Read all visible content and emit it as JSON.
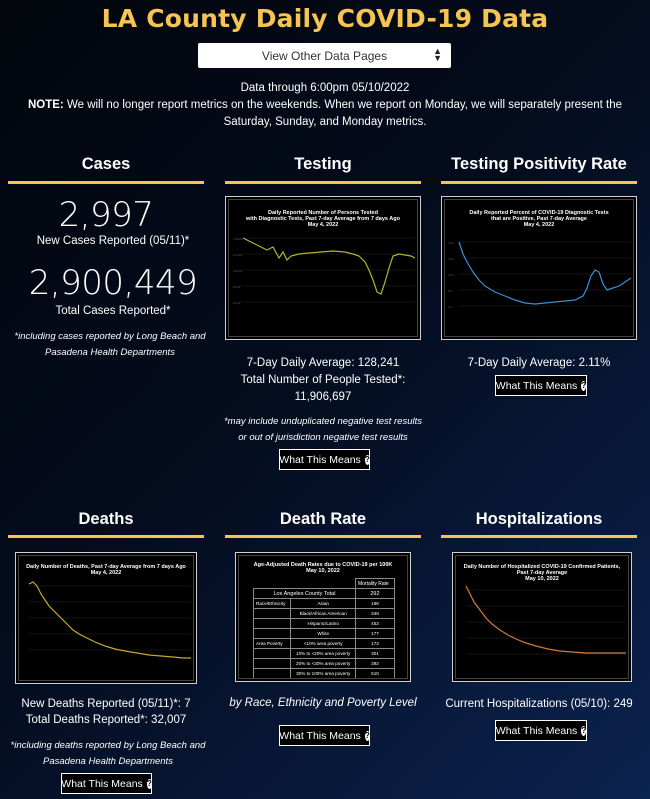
{
  "header": {
    "title": "LA County Daily COVID-19 Data",
    "select_label": "View Other Data Pages",
    "data_through": "Data through 6:00pm 05/10/2022",
    "note_label": "NOTE:",
    "note_text": " We will no longer report metrics on the weekends. When we report on Monday, we will separately present the Saturday, Sunday, and Monday metrics."
  },
  "cases": {
    "title": "Cases",
    "new_value": "2,997",
    "new_label": "New Cases Reported (05/11)*",
    "total_value": "2,900,449",
    "total_label": "Total Cases Reported*",
    "footnote": "*including cases reported by Long Beach and Pasadena Health Departments"
  },
  "testing": {
    "title": "Testing",
    "chart_title_1": "Daily Reported Number of Persons Tested",
    "chart_title_2": "with Diagnostic Tests, Past 7-day Average from 7 days Ago",
    "chart_title_3": "May 4, 2022",
    "avg": "7-Day Daily Average: 128,241",
    "total": "Total Number of People Tested*: 11,906,697",
    "footnote": "*may include unduplicated negative test results or out of jurisdiction negative test results",
    "button": "What This Means"
  },
  "positivity": {
    "title": "Testing Positivity Rate",
    "chart_title_1": "Daily Reported Percent of COVID-19 Diagnostic Tests",
    "chart_title_2": "that are Positive, Past 7-day Average",
    "chart_title_3": "May 4, 2022",
    "avg": "7-Day Daily Average: 2.11%",
    "button": "What This Means"
  },
  "deaths": {
    "title": "Deaths",
    "chart_title_1": "Daily Number of Deaths, Past 7-day Average from 7 days Ago",
    "chart_title_2": "May 4, 2022",
    "new": "New Deaths Reported (05/11)*: 7",
    "total": "Total Deaths Reported*: 32,007",
    "footnote": "*including deaths reported by Long Beach and Pasadena Health Departments",
    "button": "What This Means"
  },
  "death_rate": {
    "title": "Death Rate",
    "table_title_1": "Age-Adjusted Death Rates due to COVID-19 per 100K",
    "table_title_2": "May 10, 2022",
    "col_header": "Mortality Rate",
    "total_label": "Los Angeles County Total",
    "total_value": "292",
    "rows": [
      {
        "group": "Race/Ethnicity",
        "label": "Asian",
        "value": "198"
      },
      {
        "group": "",
        "label": "Black/African American",
        "value": "349"
      },
      {
        "group": "",
        "label": "Hispanic/Latino",
        "value": "453"
      },
      {
        "group": "",
        "label": "White",
        "value": "177"
      },
      {
        "group": "Area Poverty",
        "label": "<10% area poverty",
        "value": "173"
      },
      {
        "group": "",
        "label": "10% to <20% area poverty",
        "value": "301"
      },
      {
        "group": "",
        "label": "20% to <30% area poverty",
        "value": "392"
      },
      {
        "group": "",
        "label": "30% to 100% area poverty",
        "value": "510"
      }
    ],
    "caption": "by Race, Ethnicity and Poverty Level",
    "button": "What This Means"
  },
  "hospitalizations": {
    "title": "Hospitalizations",
    "chart_title_1": "Daily Number of Hospitalized COVID-19 Confirmed Patients,",
    "chart_title_2": "Past 7-day Average",
    "chart_title_3": "May 10, 2022",
    "current": "Current Hospitalizations (05/10): 249",
    "button": "What This Means"
  },
  "colors": {
    "accent": "#f6c452",
    "testing_line": "#b5b332",
    "positivity_line": "#3a8fd0",
    "deaths_line": "#c9a82a",
    "hosp_line": "#d57a3a"
  },
  "icons": {
    "select": "chevron-updown-icon",
    "help": "question-circle-icon"
  }
}
